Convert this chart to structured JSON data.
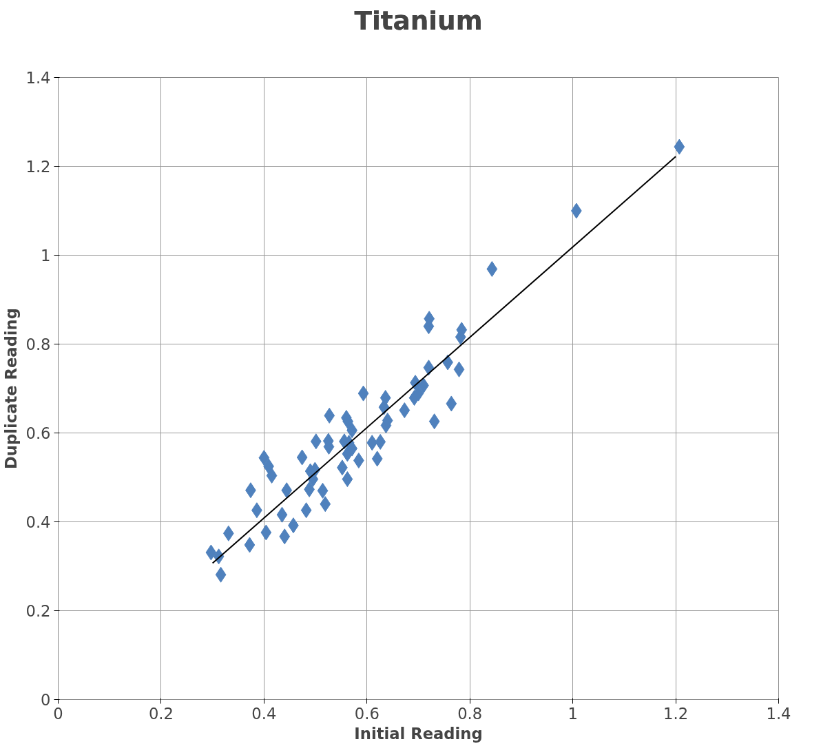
{
  "chart_data": {
    "type": "scatter",
    "title": "Titanium",
    "xlabel": "Initial Reading",
    "ylabel": "Duplicate Reading",
    "xlim": [
      0,
      1.4
    ],
    "ylim": [
      0,
      1.4
    ],
    "xticks": [
      0,
      0.2,
      0.4,
      0.6,
      0.8,
      1,
      1.2,
      1.4
    ],
    "yticks": [
      0,
      0.2,
      0.4,
      0.6,
      0.8,
      1,
      1.2,
      1.4
    ],
    "grid": true,
    "marker": "diamond",
    "series": [
      {
        "color": "#4f81bd",
        "x": [
          0.297,
          0.312,
          0.316,
          0.331,
          0.372,
          0.374,
          0.386,
          0.4,
          0.404,
          0.409,
          0.415,
          0.435,
          0.44,
          0.444,
          0.457,
          0.474,
          0.482,
          0.488,
          0.49,
          0.495,
          0.499,
          0.501,
          0.514,
          0.519,
          0.527,
          0.525,
          0.526,
          0.552,
          0.556,
          0.56,
          0.562,
          0.563,
          0.562,
          0.565,
          0.571,
          0.571,
          0.584,
          0.593,
          0.61,
          0.62,
          0.626,
          0.633,
          0.636,
          0.637,
          0.64,
          0.673,
          0.692,
          0.694,
          0.7,
          0.71,
          0.72,
          0.72,
          0.721,
          0.731,
          0.757,
          0.764,
          0.779,
          0.782,
          0.784,
          0.843,
          1.007,
          1.207
        ],
        "values": [
          0.331,
          0.322,
          0.281,
          0.374,
          0.348,
          0.471,
          0.426,
          0.544,
          0.376,
          0.525,
          0.504,
          0.416,
          0.367,
          0.471,
          0.392,
          0.545,
          0.426,
          0.473,
          0.514,
          0.496,
          0.517,
          0.581,
          0.47,
          0.44,
          0.639,
          0.582,
          0.569,
          0.522,
          0.581,
          0.634,
          0.496,
          0.626,
          0.553,
          0.578,
          0.565,
          0.606,
          0.538,
          0.689,
          0.578,
          0.542,
          0.58,
          0.658,
          0.679,
          0.617,
          0.628,
          0.651,
          0.679,
          0.713,
          0.689,
          0.707,
          0.747,
          0.84,
          0.857,
          0.626,
          0.759,
          0.666,
          0.743,
          0.816,
          0.832,
          0.969,
          1.1,
          1.244
        ]
      },
      {
        "type": "line",
        "color": "#000000",
        "marker": "none",
        "line_style": "solid",
        "x": [
          0.3,
          1.2
        ],
        "values": [
          0.307,
          1.222
        ]
      }
    ]
  }
}
